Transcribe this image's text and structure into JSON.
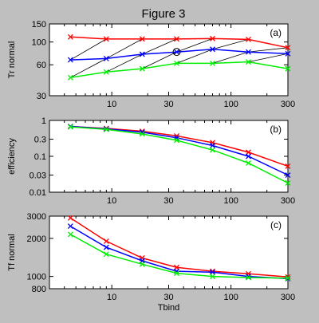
{
  "figure_title": "Figure 3",
  "colors": {
    "red": "#ff0000",
    "blue": "#0000ff",
    "green": "#00ee00",
    "guide": "#000000",
    "axes_bg": "#ffffff",
    "figure_bg": "#bfbfbf"
  },
  "chart_data": [
    {
      "type": "line",
      "panel_label": "(a)",
      "xlabel": "",
      "ylabel": "Tr normal",
      "xscale": "log",
      "yscale": "log",
      "xlim": [
        3,
        300
      ],
      "ylim": [
        30,
        150
      ],
      "xticks": [
        10,
        30,
        100,
        300
      ],
      "yticks": [
        30,
        60,
        100,
        150
      ],
      "x": [
        4.5,
        9,
        18,
        35,
        70,
        140,
        300
      ],
      "series": [
        {
          "color": "red",
          "marker": "x",
          "values": [
            112,
            107,
            107,
            107,
            108,
            106,
            88
          ]
        },
        {
          "color": "blue",
          "marker": "x",
          "values": [
            67,
            69,
            76,
            80,
            85,
            80,
            77
          ]
        },
        {
          "color": "green",
          "marker": "x",
          "values": [
            45,
            51,
            55,
            62,
            62,
            64,
            55
          ]
        }
      ],
      "guide_lines": {
        "color": "black",
        "segments": [
          [
            [
              4.5,
              45
            ],
            [
              9,
              69
            ]
          ],
          [
            [
              4.5,
              67
            ],
            [
              9,
              107
            ]
          ],
          [
            [
              9,
              51
            ],
            [
              18,
              76
            ]
          ],
          [
            [
              9,
              69
            ],
            [
              18,
              107
            ]
          ],
          [
            [
              18,
              55
            ],
            [
              35,
              80
            ]
          ],
          [
            [
              18,
              76
            ],
            [
              35,
              107
            ]
          ],
          [
            [
              35,
              62
            ],
            [
              70,
              85
            ]
          ],
          [
            [
              35,
              80
            ],
            [
              70,
              108
            ]
          ],
          [
            [
              70,
              62
            ],
            [
              140,
              80
            ]
          ],
          [
            [
              70,
              85
            ],
            [
              140,
              106
            ]
          ],
          [
            [
              140,
              64
            ],
            [
              300,
              77
            ]
          ],
          [
            [
              140,
              80
            ],
            [
              300,
              88
            ]
          ]
        ]
      },
      "circle_marker": {
        "x": 35,
        "y": 80
      }
    },
    {
      "type": "line",
      "panel_label": "(b)",
      "xlabel": "",
      "ylabel": "efficiency",
      "xscale": "log",
      "yscale": "log",
      "xlim": [
        3,
        300
      ],
      "ylim": [
        0.01,
        1
      ],
      "xticks": [
        10,
        30,
        100,
        300
      ],
      "yticks": [
        0.01,
        0.03,
        0.1,
        0.3,
        1
      ],
      "ytick_labels": [
        "0.01",
        "0.03",
        "0.1",
        "0.3",
        "1"
      ],
      "x": [
        4.5,
        9,
        18,
        35,
        70,
        140,
        300
      ],
      "series": [
        {
          "color": "red",
          "marker": "x",
          "values": [
            0.68,
            0.6,
            0.5,
            0.37,
            0.24,
            0.13,
            0.053
          ]
        },
        {
          "color": "blue",
          "marker": "x",
          "values": [
            0.68,
            0.58,
            0.47,
            0.33,
            0.2,
            0.1,
            0.03
          ]
        },
        {
          "color": "green",
          "marker": "x",
          "values": [
            0.66,
            0.56,
            0.42,
            0.28,
            0.15,
            0.065,
            0.018
          ]
        }
      ]
    },
    {
      "type": "line",
      "panel_label": "(c)",
      "xlabel": "Tbind",
      "ylabel": "Tf normal",
      "xscale": "log",
      "yscale": "log",
      "xlim": [
        3,
        300
      ],
      "ylim": [
        800,
        3000
      ],
      "xticks": [
        10,
        30,
        100,
        300
      ],
      "yticks": [
        800,
        1000,
        2000,
        3000
      ],
      "x": [
        4.5,
        9,
        18,
        35,
        70,
        140,
        300
      ],
      "series": [
        {
          "color": "red",
          "marker": "x",
          "values": [
            2900,
            1900,
            1400,
            1180,
            1100,
            1050,
            990
          ]
        },
        {
          "color": "blue",
          "marker": "x",
          "values": [
            2500,
            1700,
            1330,
            1100,
            1080,
            1000,
            960
          ]
        },
        {
          "color": "green",
          "marker": "x",
          "values": [
            2150,
            1500,
            1250,
            1060,
            1000,
            980,
            970
          ]
        }
      ]
    }
  ]
}
